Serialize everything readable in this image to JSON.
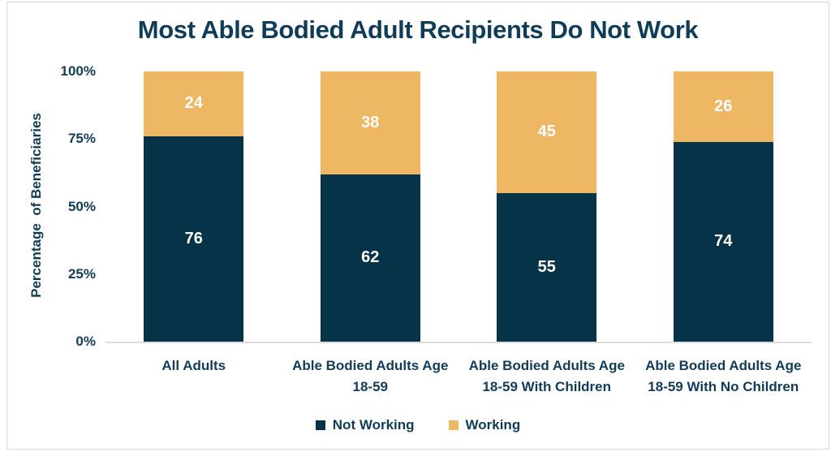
{
  "frame": {
    "background": "#ffffff",
    "border_color": "#d8d8d8"
  },
  "chart_data": {
    "type": "bar",
    "variant": "stacked-column",
    "title": "Most Able Bodied Adult Recipients Do Not Work",
    "ylabel": "Percentage  of Beneficiaries",
    "xlabel": "",
    "categories": [
      "All Adults",
      "Able Bodied Adults Age 18-59",
      "Able Bodied Adults Age 18-59 With Children",
      "Able Bodied Adults Age 18-59 With No Children"
    ],
    "category_label_lines": [
      [
        "All Adults"
      ],
      [
        "Able Bodied Adults Age",
        "18-59"
      ],
      [
        "Able Bodied Adults Age",
        "18-59 With Children"
      ],
      [
        "Able Bodied Adults Age",
        "18-59 With No Children"
      ]
    ],
    "series": [
      {
        "name": "Not Working",
        "color": "#073349",
        "values": [
          76,
          62,
          55,
          74
        ]
      },
      {
        "name": "Working",
        "color": "#edb763",
        "values": [
          24,
          38,
          45,
          26
        ]
      }
    ],
    "ylim": [
      0,
      100
    ],
    "yticks": [
      {
        "value": 0,
        "label": "0%"
      },
      {
        "value": 25,
        "label": "25%"
      },
      {
        "value": 50,
        "label": "50%"
      },
      {
        "value": 75,
        "label": "75%"
      },
      {
        "value": 100,
        "label": "100%"
      }
    ],
    "grid": false,
    "legend_position": "bottom",
    "value_labels": "inside-center",
    "colors": {
      "title_text": "#113c58",
      "axis_text": "#113c58",
      "axis_line": "#dcdcdc",
      "value_label_text": "#ffffff"
    }
  }
}
